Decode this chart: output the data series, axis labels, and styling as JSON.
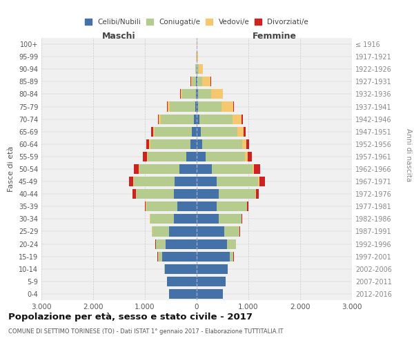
{
  "age_groups": [
    "0-4",
    "5-9",
    "10-14",
    "15-19",
    "20-24",
    "25-29",
    "30-34",
    "35-39",
    "40-44",
    "45-49",
    "50-54",
    "55-59",
    "60-64",
    "65-69",
    "70-74",
    "75-79",
    "80-84",
    "85-89",
    "90-94",
    "95-99",
    "100+"
  ],
  "birth_years": [
    "2012-2016",
    "2007-2011",
    "2002-2006",
    "1997-2001",
    "1992-1996",
    "1987-1991",
    "1982-1986",
    "1977-1981",
    "1972-1976",
    "1967-1971",
    "1962-1966",
    "1957-1961",
    "1952-1956",
    "1947-1951",
    "1942-1946",
    "1937-1941",
    "1932-1936",
    "1927-1931",
    "1922-1926",
    "1917-1921",
    "≤ 1916"
  ],
  "males": {
    "celibi": [
      530,
      570,
      620,
      670,
      600,
      530,
      440,
      380,
      440,
      430,
      330,
      200,
      120,
      90,
      50,
      30,
      20,
      10,
      5,
      2,
      2
    ],
    "coniugati": [
      2,
      2,
      2,
      80,
      190,
      330,
      460,
      600,
      730,
      790,
      780,
      750,
      780,
      730,
      650,
      490,
      260,
      80,
      20,
      3,
      2
    ],
    "vedovi": [
      0,
      0,
      0,
      2,
      2,
      2,
      2,
      3,
      5,
      5,
      8,
      10,
      20,
      20,
      30,
      40,
      30,
      20,
      5,
      2,
      0
    ],
    "divorziati": [
      0,
      0,
      0,
      2,
      2,
      5,
      10,
      20,
      60,
      80,
      90,
      80,
      50,
      40,
      20,
      20,
      5,
      5,
      2,
      0,
      0
    ]
  },
  "females": {
    "nubili": [
      510,
      560,
      600,
      640,
      590,
      530,
      420,
      380,
      430,
      380,
      290,
      170,
      110,
      80,
      50,
      30,
      20,
      10,
      10,
      2,
      2
    ],
    "coniugate": [
      2,
      2,
      2,
      70,
      170,
      300,
      440,
      590,
      700,
      810,
      790,
      760,
      770,
      700,
      640,
      450,
      260,
      100,
      30,
      5,
      2
    ],
    "vedove": [
      0,
      0,
      0,
      2,
      2,
      3,
      5,
      5,
      10,
      20,
      30,
      60,
      80,
      120,
      180,
      220,
      220,
      160,
      80,
      20,
      5
    ],
    "divorziate": [
      0,
      0,
      0,
      2,
      2,
      5,
      10,
      20,
      60,
      110,
      110,
      80,
      50,
      40,
      20,
      15,
      5,
      5,
      2,
      0,
      0
    ]
  },
  "colors": {
    "celibi": "#4472a8",
    "coniugati": "#b5cc8e",
    "vedovi": "#f5c76e",
    "divorziati": "#cc2222"
  },
  "title": "Popolazione per età, sesso e stato civile - 2017",
  "subtitle": "COMUNE DI SETTIMO TORINESE (TO) - Dati ISTAT 1° gennaio 2017 - Elaborazione TUTTITALIA.IT",
  "xlabel_left": "Maschi",
  "xlabel_right": "Femmine",
  "ylabel_left": "Fasce di età",
  "ylabel_right": "Anni di nascita",
  "legend_labels": [
    "Celibi/Nubili",
    "Coniugati/e",
    "Vedovi/e",
    "Divorziati/e"
  ],
  "bg_color": "#f0f0f0"
}
